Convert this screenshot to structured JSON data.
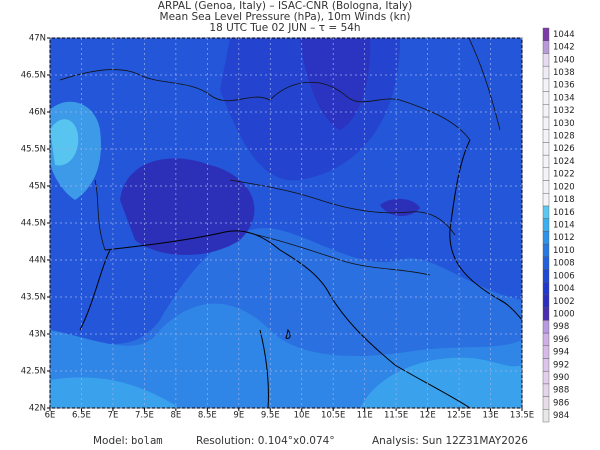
{
  "header": {
    "line1": "ARPAL (Genoa, Italy)  –  ISAC-CNR (Bologna, Italy)",
    "line2": "Mean Sea Level Pressure (hPa), 10m Winds (kn)",
    "line3": "18 UTC Tue 02 JUN  –  τ = 54h"
  },
  "map": {
    "xlim": [
      6,
      13.5
    ],
    "ylim": [
      42,
      47
    ],
    "xticks": [
      {
        "value": 6,
        "label": "6E"
      },
      {
        "value": 6.5,
        "label": "6.5E"
      },
      {
        "value": 7,
        "label": "7E"
      },
      {
        "value": 7.5,
        "label": "7.5E"
      },
      {
        "value": 8,
        "label": "8E"
      },
      {
        "value": 8.5,
        "label": "8.5E"
      },
      {
        "value": 9,
        "label": "9E"
      },
      {
        "value": 9.5,
        "label": "9.5E"
      },
      {
        "value": 10,
        "label": "10E"
      },
      {
        "value": 10.5,
        "label": "10.5E"
      },
      {
        "value": 11,
        "label": "11E"
      },
      {
        "value": 11.5,
        "label": "11.5E"
      },
      {
        "value": 12,
        "label": "12E"
      },
      {
        "value": 12.5,
        "label": "12.5E"
      },
      {
        "value": 13,
        "label": "13E"
      },
      {
        "value": 13.5,
        "label": "13.5E"
      }
    ],
    "yticks": [
      {
        "value": 42,
        "label": "42N"
      },
      {
        "value": 42.5,
        "label": "42.5N"
      },
      {
        "value": 43,
        "label": "43N"
      },
      {
        "value": 43.5,
        "label": "43.5N"
      },
      {
        "value": 44,
        "label": "44N"
      },
      {
        "value": 44.5,
        "label": "44.5N"
      },
      {
        "value": 45,
        "label": "45N"
      },
      {
        "value": 45.5,
        "label": "45.5N"
      },
      {
        "value": 46,
        "label": "46N"
      },
      {
        "value": 46.5,
        "label": "46.5N"
      },
      {
        "value": 47,
        "label": "47N"
      }
    ]
  },
  "colorbar": {
    "levels": [
      984,
      986,
      988,
      990,
      992,
      994,
      996,
      998,
      1000,
      1002,
      1004,
      1006,
      1008,
      1010,
      1012,
      1014,
      1016,
      1018,
      1020,
      1022,
      1024,
      1026,
      1028,
      1030,
      1032,
      1034,
      1036,
      1038,
      1040,
      1042,
      1044
    ],
    "colors": [
      "#e8e8e8",
      "#e6dde8",
      "#e4d6ea",
      "#e2cfec",
      "#dcc4ea",
      "#d6bae8",
      "#cfb0e6",
      "#b89ae0",
      "#4a2eb0",
      "#2c2ec0",
      "#2238cc",
      "#1f48d6",
      "#2360dc",
      "#2878e2",
      "#2e92e8",
      "#3cb0ee",
      "#5cc8f2",
      "#f4f4f8",
      "#f4f4f8",
      "#f4f4f8",
      "#f4f4f8",
      "#f4f4f8",
      "#f4f4f8",
      "#f4f4f8",
      "#f4f4f8",
      "#f4f4f8",
      "#f4f4f8",
      "#f0ecf6",
      "#e6dcf2",
      "#b89ad8",
      "#7c3ca8"
    ]
  },
  "footer": {
    "model_label": "Model:",
    "model": "bolam",
    "resolution": "Resolution: 0.104°x0.074°",
    "analysis": "Analysis: Sun 12Z31MAY2026"
  }
}
